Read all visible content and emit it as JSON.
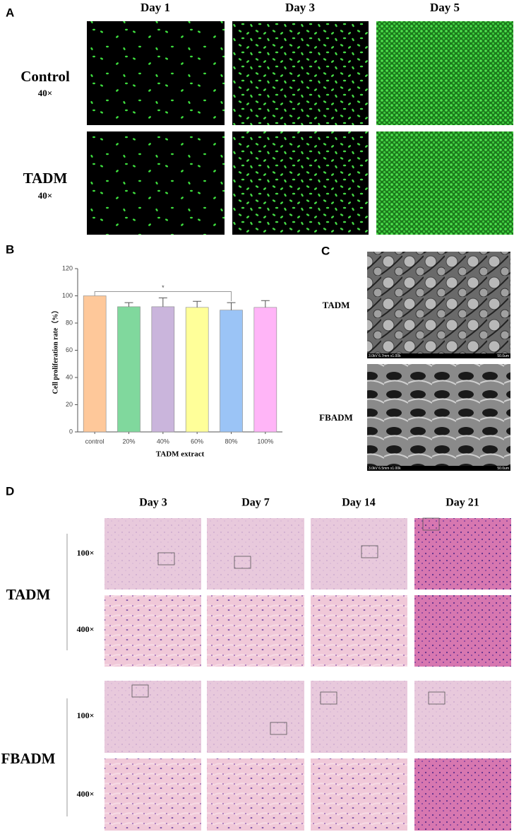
{
  "panel_a": {
    "label": "A",
    "columns": [
      "Day 1",
      "Day 3",
      "Day 5"
    ],
    "rows": [
      {
        "group": "Control",
        "magnification": "40×"
      },
      {
        "group": "TADM",
        "magnification": "40×"
      }
    ]
  },
  "chart_data": {
    "type": "bar",
    "label": "B",
    "ylabel": "Cell proliferation rate（%）",
    "xlabel": "TADM extract",
    "categories": [
      "control",
      "20%",
      "40%",
      "60%",
      "80%",
      "100%"
    ],
    "values": [
      100,
      92,
      92,
      91.5,
      89.5,
      91.5
    ],
    "errors": [
      0,
      3,
      6.5,
      4.5,
      5.5,
      5
    ],
    "colors": [
      "#fec89a",
      "#80d89d",
      "#cab5dc",
      "#ffff99",
      "#9bc4f6",
      "#ffb5f7"
    ],
    "ylim": [
      0,
      120
    ],
    "yticks": [
      0,
      20,
      40,
      60,
      80,
      100,
      120
    ],
    "annotation": "*"
  },
  "panel_c": {
    "label": "C",
    "images": [
      {
        "group": "TADM",
        "info": "3.0kV 6.7mm x1.00k",
        "scale": "50.0um"
      },
      {
        "group": "FBADM",
        "info": "3.0kV 6.5mm x1.00k",
        "scale": "50.0um"
      }
    ]
  },
  "panel_d": {
    "label": "D",
    "columns": [
      "Day 3",
      "Day 7",
      "Day 14",
      "Day 21"
    ],
    "groups": [
      {
        "name": "TADM",
        "magnifications": [
          "100×",
          "400×"
        ]
      },
      {
        "name": "FBADM",
        "magnifications": [
          "100×",
          "400×"
        ]
      }
    ]
  }
}
